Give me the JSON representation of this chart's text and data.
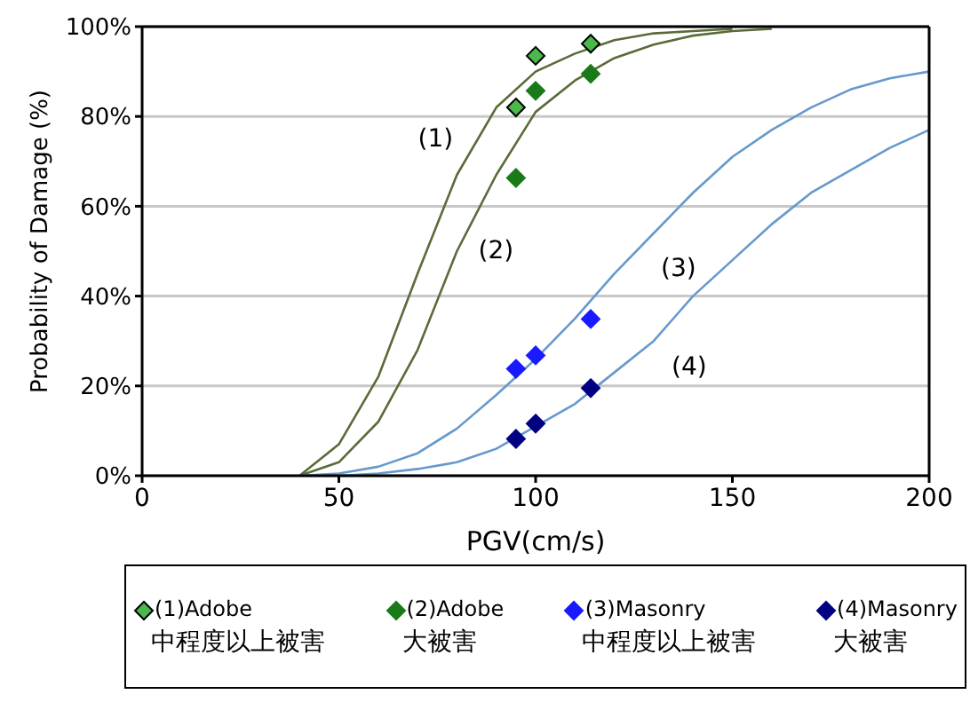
{
  "chart_data": {
    "type": "line",
    "xlabel": "PGV(cm/s)",
    "ylabel": "Probability of Damage (%)",
    "xlim": [
      0,
      200
    ],
    "xticks": [
      0,
      50,
      100,
      150,
      200
    ],
    "ylim": [
      0,
      100
    ],
    "yticks": [
      {
        "value": 0,
        "label": "0%"
      },
      {
        "value": 20,
        "label": "20%"
      },
      {
        "value": 40,
        "label": "40%"
      },
      {
        "value": 60,
        "label": "60%"
      },
      {
        "value": 80,
        "label": "80%"
      },
      {
        "value": 100,
        "label": "100%"
      }
    ],
    "grid": "y",
    "legend": "bottom",
    "series": [
      {
        "color": "#5a6b3a",
        "marker": "none",
        "line_style": "solid",
        "x": [
          40,
          50,
          60,
          70,
          80,
          90,
          100,
          110,
          120,
          130,
          140,
          150
        ],
        "values": [
          0,
          7,
          22,
          45,
          67,
          82,
          90,
          94,
          97,
          98.5,
          99,
          99.5
        ]
      },
      {
        "color": "#5a6b3a",
        "marker": "none",
        "line_style": "solid",
        "x": [
          40,
          50,
          60,
          70,
          80,
          90,
          100,
          110,
          120,
          130,
          140,
          150,
          160
        ],
        "values": [
          0,
          3,
          12,
          28,
          50,
          67,
          81,
          88,
          93,
          96,
          98,
          99,
          99.5
        ]
      },
      {
        "color": "#6699cc",
        "marker": "none",
        "line_style": "solid",
        "x": [
          40,
          50,
          60,
          70,
          80,
          90,
          100,
          110,
          120,
          130,
          140,
          150,
          160,
          170,
          180,
          190,
          200
        ],
        "values": [
          0,
          0.5,
          2,
          5,
          10.5,
          18,
          26,
          35,
          45,
          54,
          63,
          71,
          77,
          82,
          86,
          88.5,
          90
        ]
      },
      {
        "color": "#6699cc",
        "marker": "none",
        "line_style": "solid",
        "x": [
          50,
          60,
          70,
          80,
          90,
          100,
          110,
          120,
          130,
          140,
          150,
          160,
          170,
          180,
          190,
          200
        ],
        "values": [
          0,
          0.5,
          1.5,
          3,
          6,
          11,
          16,
          23,
          30,
          40,
          48,
          56,
          63,
          68,
          73,
          77
        ]
      },
      {
        "type": "scatter",
        "name": "(1)Adobe\n中程度以上被害",
        "color": "#4cb84c",
        "marker": "diamond",
        "x": [
          95,
          100,
          114
        ],
        "values": [
          82,
          93.5,
          96.2
        ]
      },
      {
        "type": "scatter",
        "name": "(2)Adobe\n大被害",
        "color": "#1a7a1a",
        "marker": "diamond",
        "x": [
          95,
          100,
          114
        ],
        "values": [
          66.3,
          85.7,
          89.5
        ]
      },
      {
        "type": "scatter",
        "name": "(3)Masonry\n中程度以上被害",
        "color": "#1a1aff",
        "marker": "diamond",
        "x": [
          95,
          100,
          114
        ],
        "values": [
          23.8,
          26.8,
          34.9
        ]
      },
      {
        "type": "scatter",
        "name": "(4)Masonry\n大被害",
        "color": "#000080",
        "marker": "diamond",
        "x": [
          95,
          100,
          114
        ],
        "values": [
          8.2,
          11.6,
          19.5
        ]
      }
    ],
    "annotations": [
      "(1)",
      "(2)",
      "(3)",
      "(4)"
    ]
  }
}
